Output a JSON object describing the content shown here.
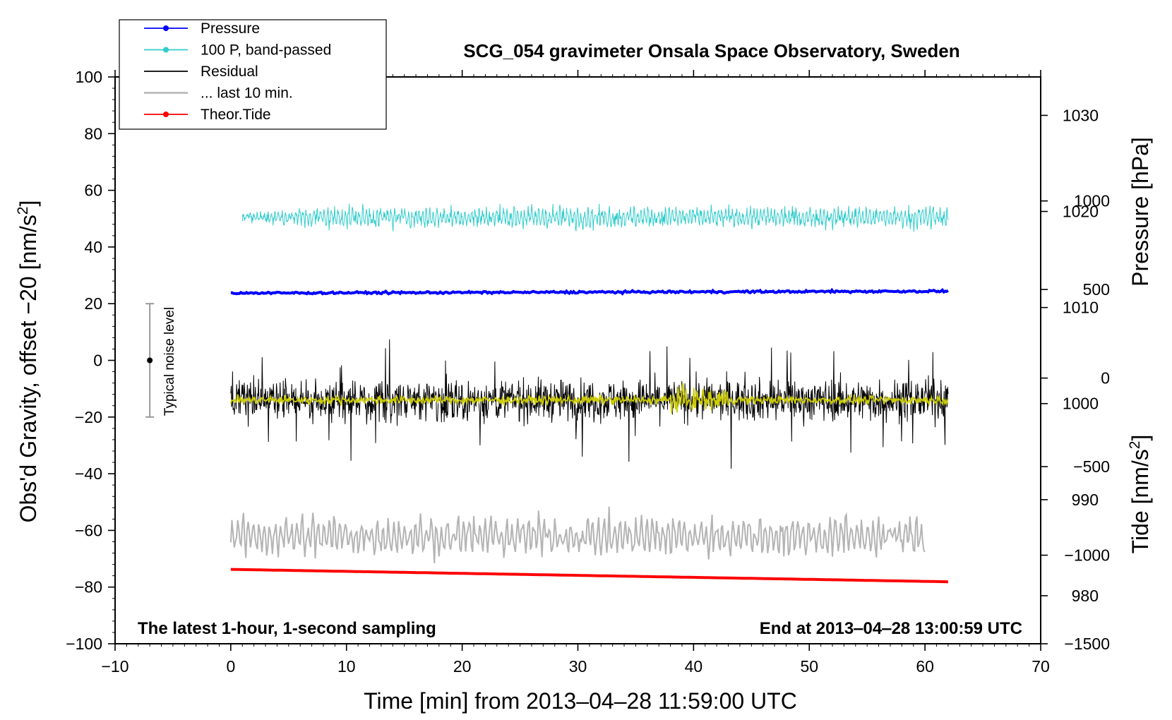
{
  "chart_data": {
    "type": "line",
    "title": "SCG_054 gravimeter Onsala Space Observatory, Sweden",
    "xlabel": "Time [min] from 2013‒04‒28 11:59:00 UTC",
    "ylabel": "Obs'd Gravity, offset −20 [nm/s",
    "ylabel_sup": "2",
    "ylabel_end": "]",
    "y2label_pressure": "Pressure [hPa]",
    "y2label_tide": "Tide [nm/s",
    "y2label_tide_sup": "2",
    "y2label_tide_end": "]",
    "annotation_left": "The latest 1‑hour, 1‑second sampling",
    "annotation_right": "End at 2013‒04‒28 13:00:59 UTC",
    "noise_label": "Typical noise level",
    "noise_range": [
      -20,
      20
    ],
    "noise_x": -7,
    "xlim": [
      -10,
      70
    ],
    "ylim": [
      -100,
      100
    ],
    "pressure_lim": [
      975,
      1034
    ],
    "tide_lim": [
      -1500,
      1700
    ],
    "x_ticks": [
      {
        "v": -10,
        "t": "−10"
      },
      {
        "v": 0,
        "t": "0"
      },
      {
        "v": 10,
        "t": "10"
      },
      {
        "v": 20,
        "t": "20"
      },
      {
        "v": 30,
        "t": "30"
      },
      {
        "v": 40,
        "t": "40"
      },
      {
        "v": 50,
        "t": "50"
      },
      {
        "v": 60,
        "t": "60"
      },
      {
        "v": 70,
        "t": "70"
      }
    ],
    "y_ticks": [
      {
        "v": 100,
        "t": "100"
      },
      {
        "v": 80,
        "t": "80"
      },
      {
        "v": 60,
        "t": "60"
      },
      {
        "v": 40,
        "t": "40"
      },
      {
        "v": 20,
        "t": "20"
      },
      {
        "v": 0,
        "t": "0"
      },
      {
        "v": -20,
        "t": "−20"
      },
      {
        "v": -40,
        "t": "−40"
      },
      {
        "v": -60,
        "t": "−60"
      },
      {
        "v": -80,
        "t": "−80"
      },
      {
        "v": -100,
        "t": "−100"
      }
    ],
    "pressure_ticks": [
      {
        "v": 1030,
        "t": "1030"
      },
      {
        "v": 1020,
        "t": "1020"
      },
      {
        "v": 1010,
        "t": "1010"
      },
      {
        "v": 1000,
        "t": "1000"
      },
      {
        "v": 990,
        "t": "990"
      },
      {
        "v": 980,
        "t": "980"
      }
    ],
    "tide_ticks": [
      {
        "v": 1000,
        "t": "1000"
      },
      {
        "v": 500,
        "t": "500"
      },
      {
        "v": 0,
        "t": "0"
      },
      {
        "v": -500,
        "t": "−500"
      },
      {
        "v": -1000,
        "t": "−1000"
      },
      {
        "v": -1500,
        "t": "−1500"
      }
    ],
    "legend_position": "top-left",
    "series": [
      {
        "name": "Pressure",
        "color": "#0000ff",
        "axis": "pressure",
        "start": 1011.5,
        "end": 1011.7,
        "noise": 0.12,
        "x": [
          0,
          62
        ]
      },
      {
        "name": "100 P, band‑passed",
        "color": "#33cccc",
        "axis": "gravity",
        "center": 50.5,
        "amplitude": 6,
        "x": [
          1,
          62
        ]
      },
      {
        "name": "Residual",
        "color": "#000000",
        "axis": "gravity",
        "center": -14,
        "amplitude": 14,
        "x": [
          0,
          62
        ]
      },
      {
        "name": "... last 10 min.",
        "color": "#b4b4b4",
        "axis": "gravity",
        "center": -62,
        "amplitude": 10,
        "x": [
          0,
          60
        ]
      },
      {
        "name": "Theor.Tide",
        "color": "#ff0000",
        "axis": "tide",
        "start": -1080,
        "end": -1150,
        "x": [
          0,
          62
        ]
      }
    ],
    "smoothed_residual": {
      "color": "#cccc00",
      "center": -14,
      "amplitude": 1.5
    }
  }
}
